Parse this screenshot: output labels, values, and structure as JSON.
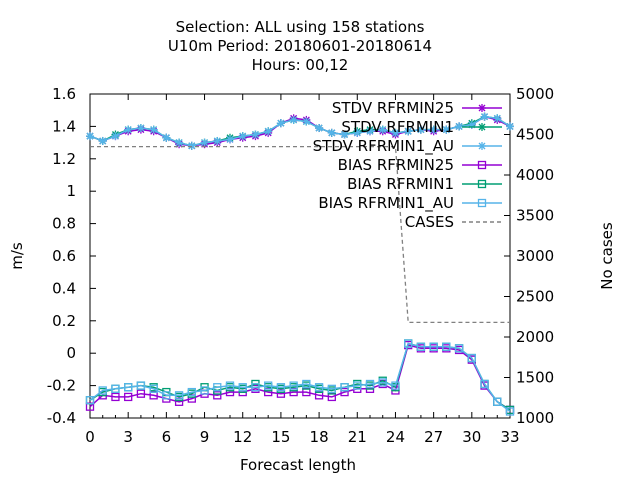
{
  "title_lines": [
    "Selection: ALL using   158 stations",
    "U10m   Period: 20180601-20180614",
    "Hours:  00,12"
  ],
  "chart_data": {
    "type": "line",
    "title": "Selection: ALL using   158 stations / U10m   Period: 20180601-20180614 / Hours:  00,12",
    "xlabel": "Forecast length",
    "ylabel": "m/s",
    "y2label": "No cases",
    "xlim": [
      0,
      33
    ],
    "ylim": [
      -0.4,
      1.6
    ],
    "y2lim": [
      1000,
      5000
    ],
    "xticks": [
      0,
      3,
      6,
      9,
      12,
      15,
      18,
      21,
      24,
      27,
      30,
      33
    ],
    "yticks": [
      "-0.4",
      "-0.2",
      "0",
      "0.2",
      "0.4",
      "0.6",
      "0.8",
      "1",
      "1.2",
      "1.4",
      "1.6"
    ],
    "y2ticks": [
      1000,
      1500,
      2000,
      2500,
      3000,
      3500,
      4000,
      4500,
      5000
    ],
    "x": [
      0,
      1,
      2,
      3,
      4,
      5,
      6,
      7,
      8,
      9,
      10,
      11,
      12,
      13,
      14,
      15,
      16,
      17,
      18,
      19,
      20,
      21,
      22,
      23,
      24,
      25,
      26,
      27,
      28,
      29,
      30,
      31,
      32,
      33
    ],
    "legend_position": "top-right",
    "series": [
      {
        "name": "STDV RFRMIN25",
        "axis": "y1",
        "color": "#9400d3",
        "marker": "star",
        "values": [
          1.34,
          1.31,
          1.34,
          1.37,
          1.38,
          1.37,
          1.33,
          1.29,
          1.28,
          1.29,
          1.3,
          1.32,
          1.33,
          1.34,
          1.36,
          1.42,
          1.45,
          1.44,
          1.39,
          1.36,
          1.35,
          1.36,
          1.37,
          1.37,
          1.35,
          1.37,
          1.38,
          1.37,
          1.38,
          1.4,
          1.41,
          1.46,
          1.44,
          1.4
        ]
      },
      {
        "name": "STDV RFRMIN1",
        "axis": "y1",
        "color": "#009e73",
        "marker": "star",
        "values": [
          1.34,
          1.31,
          1.35,
          1.38,
          1.39,
          1.38,
          1.33,
          1.3,
          1.28,
          1.3,
          1.31,
          1.33,
          1.34,
          1.35,
          1.37,
          1.42,
          1.44,
          1.43,
          1.39,
          1.36,
          1.35,
          1.37,
          1.38,
          1.38,
          1.36,
          1.37,
          1.38,
          1.38,
          1.38,
          1.4,
          1.42,
          1.46,
          1.45,
          1.4
        ]
      },
      {
        "name": "STDV RFRMIN1_AU",
        "axis": "y1",
        "color": "#56b4e9",
        "marker": "star",
        "values": [
          1.34,
          1.31,
          1.34,
          1.38,
          1.39,
          1.38,
          1.33,
          1.3,
          1.28,
          1.3,
          1.31,
          1.32,
          1.34,
          1.35,
          1.37,
          1.42,
          1.44,
          1.43,
          1.39,
          1.36,
          1.35,
          1.36,
          1.37,
          1.38,
          1.36,
          1.37,
          1.38,
          1.38,
          1.38,
          1.4,
          1.41,
          1.46,
          1.45,
          1.4
        ]
      },
      {
        "name": "BIAS RFRMIN25",
        "axis": "y1",
        "color": "#9400d3",
        "marker": "square",
        "values": [
          -0.33,
          -0.26,
          -0.27,
          -0.27,
          -0.25,
          -0.26,
          -0.28,
          -0.3,
          -0.28,
          -0.25,
          -0.26,
          -0.24,
          -0.24,
          -0.22,
          -0.24,
          -0.25,
          -0.24,
          -0.24,
          -0.26,
          -0.27,
          -0.24,
          -0.22,
          -0.22,
          -0.19,
          -0.23,
          0.05,
          0.03,
          0.03,
          0.03,
          0.02,
          -0.04,
          -0.2,
          -0.3,
          -0.35
        ]
      },
      {
        "name": "BIAS RFRMIN1",
        "axis": "y1",
        "color": "#009e73",
        "marker": "square",
        "values": [
          -0.29,
          -0.24,
          -0.22,
          -0.21,
          -0.2,
          -0.21,
          -0.24,
          -0.27,
          -0.25,
          -0.21,
          -0.23,
          -0.21,
          -0.22,
          -0.19,
          -0.21,
          -0.22,
          -0.21,
          -0.2,
          -0.22,
          -0.23,
          -0.21,
          -0.19,
          -0.2,
          -0.17,
          -0.21,
          0.06,
          0.04,
          0.04,
          0.04,
          0.03,
          -0.03,
          -0.19,
          -0.3,
          -0.35
        ]
      },
      {
        "name": "BIAS RFRMIN1_AU",
        "axis": "y1",
        "color": "#56b4e9",
        "marker": "square",
        "values": [
          -0.29,
          -0.23,
          -0.22,
          -0.21,
          -0.2,
          -0.22,
          -0.26,
          -0.26,
          -0.24,
          -0.23,
          -0.21,
          -0.2,
          -0.21,
          -0.21,
          -0.2,
          -0.21,
          -0.2,
          -0.19,
          -0.21,
          -0.22,
          -0.21,
          -0.2,
          -0.19,
          -0.18,
          -0.2,
          0.06,
          0.04,
          0.04,
          0.04,
          0.03,
          -0.03,
          -0.19,
          -0.3,
          -0.36
        ]
      },
      {
        "name": "CASES",
        "axis": "y2",
        "color": "#808080",
        "dash": true,
        "values": [
          4350,
          4350,
          4350,
          4350,
          4350,
          4350,
          4350,
          4350,
          4350,
          4350,
          4350,
          4350,
          4350,
          4350,
          4350,
          4350,
          4350,
          4350,
          4350,
          4350,
          4350,
          4350,
          4350,
          4350,
          4350,
          2180,
          2180,
          2180,
          2180,
          2180,
          2180,
          2180,
          2180,
          2180
        ]
      }
    ]
  }
}
